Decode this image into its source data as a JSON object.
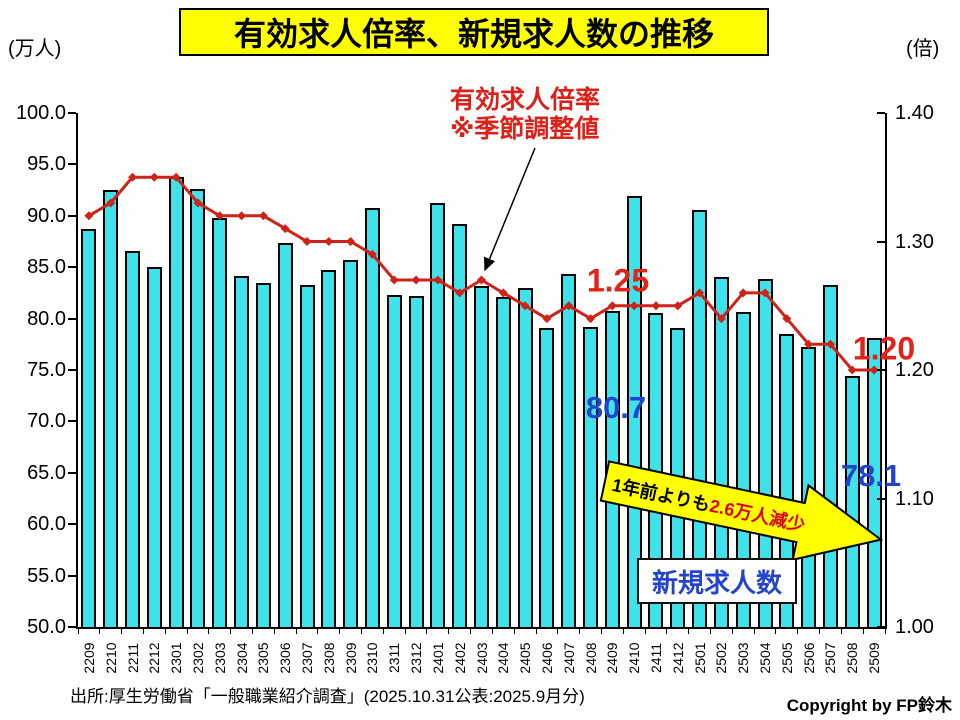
{
  "title": "有効求人倍率、新規求人数の推移",
  "left_axis_unit": "(万人)",
  "right_axis_unit": "(倍)",
  "annotations": {
    "line_caption_line1": "有効求人倍率",
    "line_caption_line2": "※季節調整値",
    "mid_ratio_label": "1.25",
    "end_ratio_label": "1.20",
    "mid_bar_label": "80.7",
    "end_bar_label": "78.1",
    "arrow_text_black": "1年前よりも",
    "arrow_text_red": "2.6万人減少",
    "bar_series_label": "新規求人数"
  },
  "source": "出所:厚生労働省「一般職業紹介調査」(2025.10.31公表:2025.9月分)",
  "copyright": "Copyright by FP鈴木",
  "colors": {
    "bar_fill": "#3fe2ea",
    "bar_border": "#000000",
    "line_red": "#cc2418",
    "label_red": "#e3231a",
    "label_blue": "#2244cc",
    "arrow_yellow": "#ffff00",
    "title_bg": "#ffff00"
  },
  "chart_data": {
    "type": "bar",
    "title": "有効求人倍率、新規求人数の推移",
    "categories": [
      "2209",
      "2210",
      "2211",
      "2212",
      "2301",
      "2302",
      "2303",
      "2304",
      "2305",
      "2306",
      "2307",
      "2308",
      "2309",
      "2310",
      "2311",
      "2312",
      "2401",
      "2402",
      "2403",
      "2404",
      "2405",
      "2406",
      "2407",
      "2408",
      "2409",
      "2410",
      "2411",
      "2412",
      "2501",
      "2502",
      "2503",
      "2504",
      "2505",
      "2506",
      "2507",
      "2508",
      "2509"
    ],
    "series": [
      {
        "name": "新規求人数",
        "type": "bar",
        "axis": "left",
        "unit": "万人",
        "values": [
          88.7,
          92.5,
          86.6,
          85.0,
          93.8,
          92.6,
          89.8,
          84.1,
          83.5,
          87.4,
          83.3,
          84.7,
          85.7,
          90.8,
          82.3,
          82.2,
          91.2,
          89.2,
          83.2,
          82.1,
          83.0,
          79.1,
          84.3,
          79.2,
          80.7,
          91.9,
          80.5,
          79.1,
          90.6,
          84.0,
          80.6,
          83.9,
          78.5,
          77.2,
          83.3,
          74.4,
          78.1
        ]
      },
      {
        "name": "有効求人倍率(※季節調整値)",
        "type": "line",
        "axis": "right",
        "unit": "倍",
        "values": [
          1.32,
          1.33,
          1.35,
          1.35,
          1.35,
          1.33,
          1.32,
          1.32,
          1.32,
          1.31,
          1.3,
          1.3,
          1.3,
          1.29,
          1.27,
          1.27,
          1.27,
          1.26,
          1.27,
          1.26,
          1.25,
          1.24,
          1.25,
          1.24,
          1.25,
          1.25,
          1.25,
          1.25,
          1.26,
          1.24,
          1.26,
          1.26,
          1.24,
          1.22,
          1.22,
          1.2,
          1.2
        ]
      }
    ],
    "left_axis": {
      "min": 50.0,
      "max": 100.0,
      "step": 5.0,
      "label": "(万人)"
    },
    "right_axis": {
      "min": 1.0,
      "max": 1.4,
      "step": 0.1,
      "label": "(倍)"
    },
    "legend_position": "none",
    "grid": false,
    "annotations": [
      "1.25 (2409-2412付近)",
      "1.20 (2509)",
      "80.7 (2409)",
      "78.1 (2509)",
      "1年前よりも2.6万人減少"
    ]
  }
}
